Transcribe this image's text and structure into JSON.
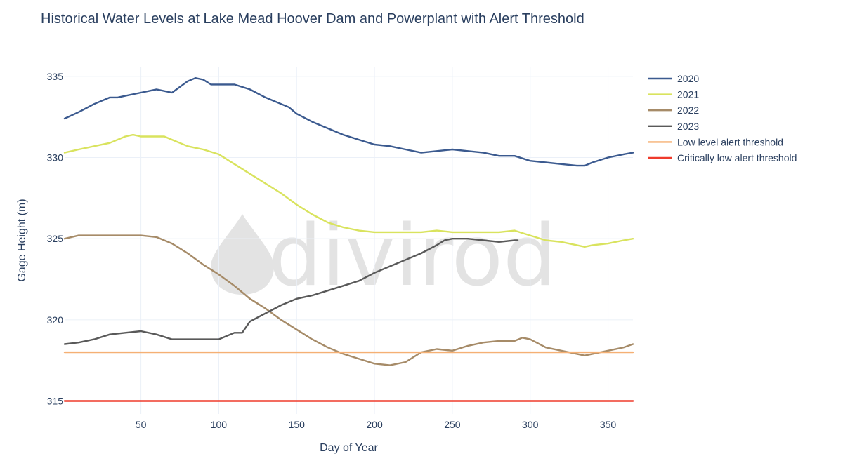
{
  "title": "Historical Water Levels at Lake Mead Hoover Dam and Powerplant with Alert Threshold",
  "watermark": "divirod",
  "chart_data": {
    "type": "line",
    "title": "Historical Water Levels at Lake Mead Hoover Dam and Powerplant with Alert Threshold",
    "xlabel": "Day of Year",
    "ylabel": "Gage Height (m)",
    "xlim": [
      1,
      366
    ],
    "ylim": [
      314.2,
      335.6
    ],
    "xticks": [
      50,
      100,
      150,
      200,
      250,
      300,
      350
    ],
    "yticks": [
      315,
      320,
      325,
      330,
      335
    ],
    "grid": true,
    "legend_position": "right",
    "series": [
      {
        "name": "2020",
        "color": "#3b5a8f",
        "x": [
          1,
          10,
          20,
          30,
          35,
          40,
          50,
          60,
          70,
          80,
          85,
          90,
          95,
          100,
          110,
          120,
          130,
          140,
          145,
          150,
          160,
          170,
          180,
          190,
          200,
          210,
          220,
          230,
          240,
          250,
          260,
          270,
          280,
          290,
          300,
          310,
          320,
          330,
          335,
          340,
          350,
          360,
          366
        ],
        "y": [
          332.4,
          332.8,
          333.3,
          333.7,
          333.7,
          333.8,
          334.0,
          334.2,
          334.0,
          334.7,
          334.9,
          334.8,
          334.5,
          334.5,
          334.5,
          334.2,
          333.7,
          333.3,
          333.1,
          332.7,
          332.2,
          331.8,
          331.4,
          331.1,
          330.8,
          330.7,
          330.5,
          330.3,
          330.4,
          330.5,
          330.4,
          330.3,
          330.1,
          330.1,
          329.8,
          329.7,
          329.6,
          329.5,
          329.5,
          329.7,
          330.0,
          330.2,
          330.3
        ]
      },
      {
        "name": "2021",
        "color": "#d9e35e",
        "x": [
          1,
          10,
          20,
          30,
          40,
          45,
          50,
          60,
          65,
          70,
          80,
          85,
          90,
          100,
          110,
          120,
          130,
          140,
          150,
          160,
          170,
          180,
          190,
          200,
          210,
          220,
          230,
          240,
          250,
          260,
          270,
          280,
          290,
          300,
          310,
          320,
          330,
          335,
          340,
          350,
          360,
          366
        ],
        "y": [
          330.3,
          330.5,
          330.7,
          330.9,
          331.3,
          331.4,
          331.3,
          331.3,
          331.3,
          331.1,
          330.7,
          330.6,
          330.5,
          330.2,
          329.6,
          329.0,
          328.4,
          327.8,
          327.1,
          326.5,
          326.0,
          325.7,
          325.5,
          325.4,
          325.4,
          325.4,
          325.4,
          325.5,
          325.4,
          325.4,
          325.4,
          325.4,
          325.5,
          325.2,
          324.9,
          324.8,
          324.6,
          324.5,
          324.6,
          324.7,
          324.9,
          325.0
        ]
      },
      {
        "name": "2022",
        "color": "#a68b68",
        "x": [
          1,
          10,
          20,
          30,
          40,
          50,
          60,
          70,
          80,
          90,
          100,
          110,
          120,
          125,
          130,
          140,
          150,
          160,
          170,
          180,
          190,
          200,
          210,
          220,
          225,
          230,
          240,
          250,
          260,
          270,
          280,
          290,
          295,
          300,
          310,
          320,
          330,
          335,
          340,
          350,
          360,
          366
        ],
        "y": [
          325.0,
          325.2,
          325.2,
          325.2,
          325.2,
          325.2,
          325.1,
          324.7,
          324.1,
          323.4,
          322.8,
          322.1,
          321.3,
          321.0,
          320.7,
          320.0,
          319.4,
          318.8,
          318.3,
          317.9,
          317.6,
          317.3,
          317.2,
          317.4,
          317.7,
          318.0,
          318.2,
          318.1,
          318.4,
          318.6,
          318.7,
          318.7,
          318.9,
          318.8,
          318.3,
          318.1,
          317.9,
          317.8,
          317.9,
          318.1,
          318.3,
          318.5
        ]
      },
      {
        "name": "2023",
        "color": "#595959",
        "x": [
          1,
          10,
          20,
          30,
          40,
          50,
          60,
          70,
          80,
          90,
          100,
          110,
          115,
          120,
          130,
          140,
          150,
          160,
          170,
          180,
          190,
          200,
          210,
          220,
          225,
          230,
          240,
          245,
          250,
          260,
          270,
          280,
          290,
          292
        ],
        "y": [
          318.5,
          318.6,
          318.8,
          319.1,
          319.2,
          319.3,
          319.1,
          318.8,
          318.8,
          318.8,
          318.8,
          319.2,
          319.2,
          319.9,
          320.4,
          320.9,
          321.3,
          321.5,
          321.8,
          322.1,
          322.4,
          322.9,
          323.3,
          323.7,
          323.9,
          324.1,
          324.6,
          324.9,
          325.0,
          325.0,
          324.9,
          324.8,
          324.9,
          324.9
        ]
      },
      {
        "name": "Low level alert threshold",
        "color": "#f5b074",
        "x": [
          1,
          366
        ],
        "y": [
          318.0,
          318.0
        ]
      },
      {
        "name": "Critically low alert threshold",
        "color": "#ef3b2c",
        "x": [
          1,
          366
        ],
        "y": [
          315.0,
          315.0
        ]
      }
    ]
  }
}
